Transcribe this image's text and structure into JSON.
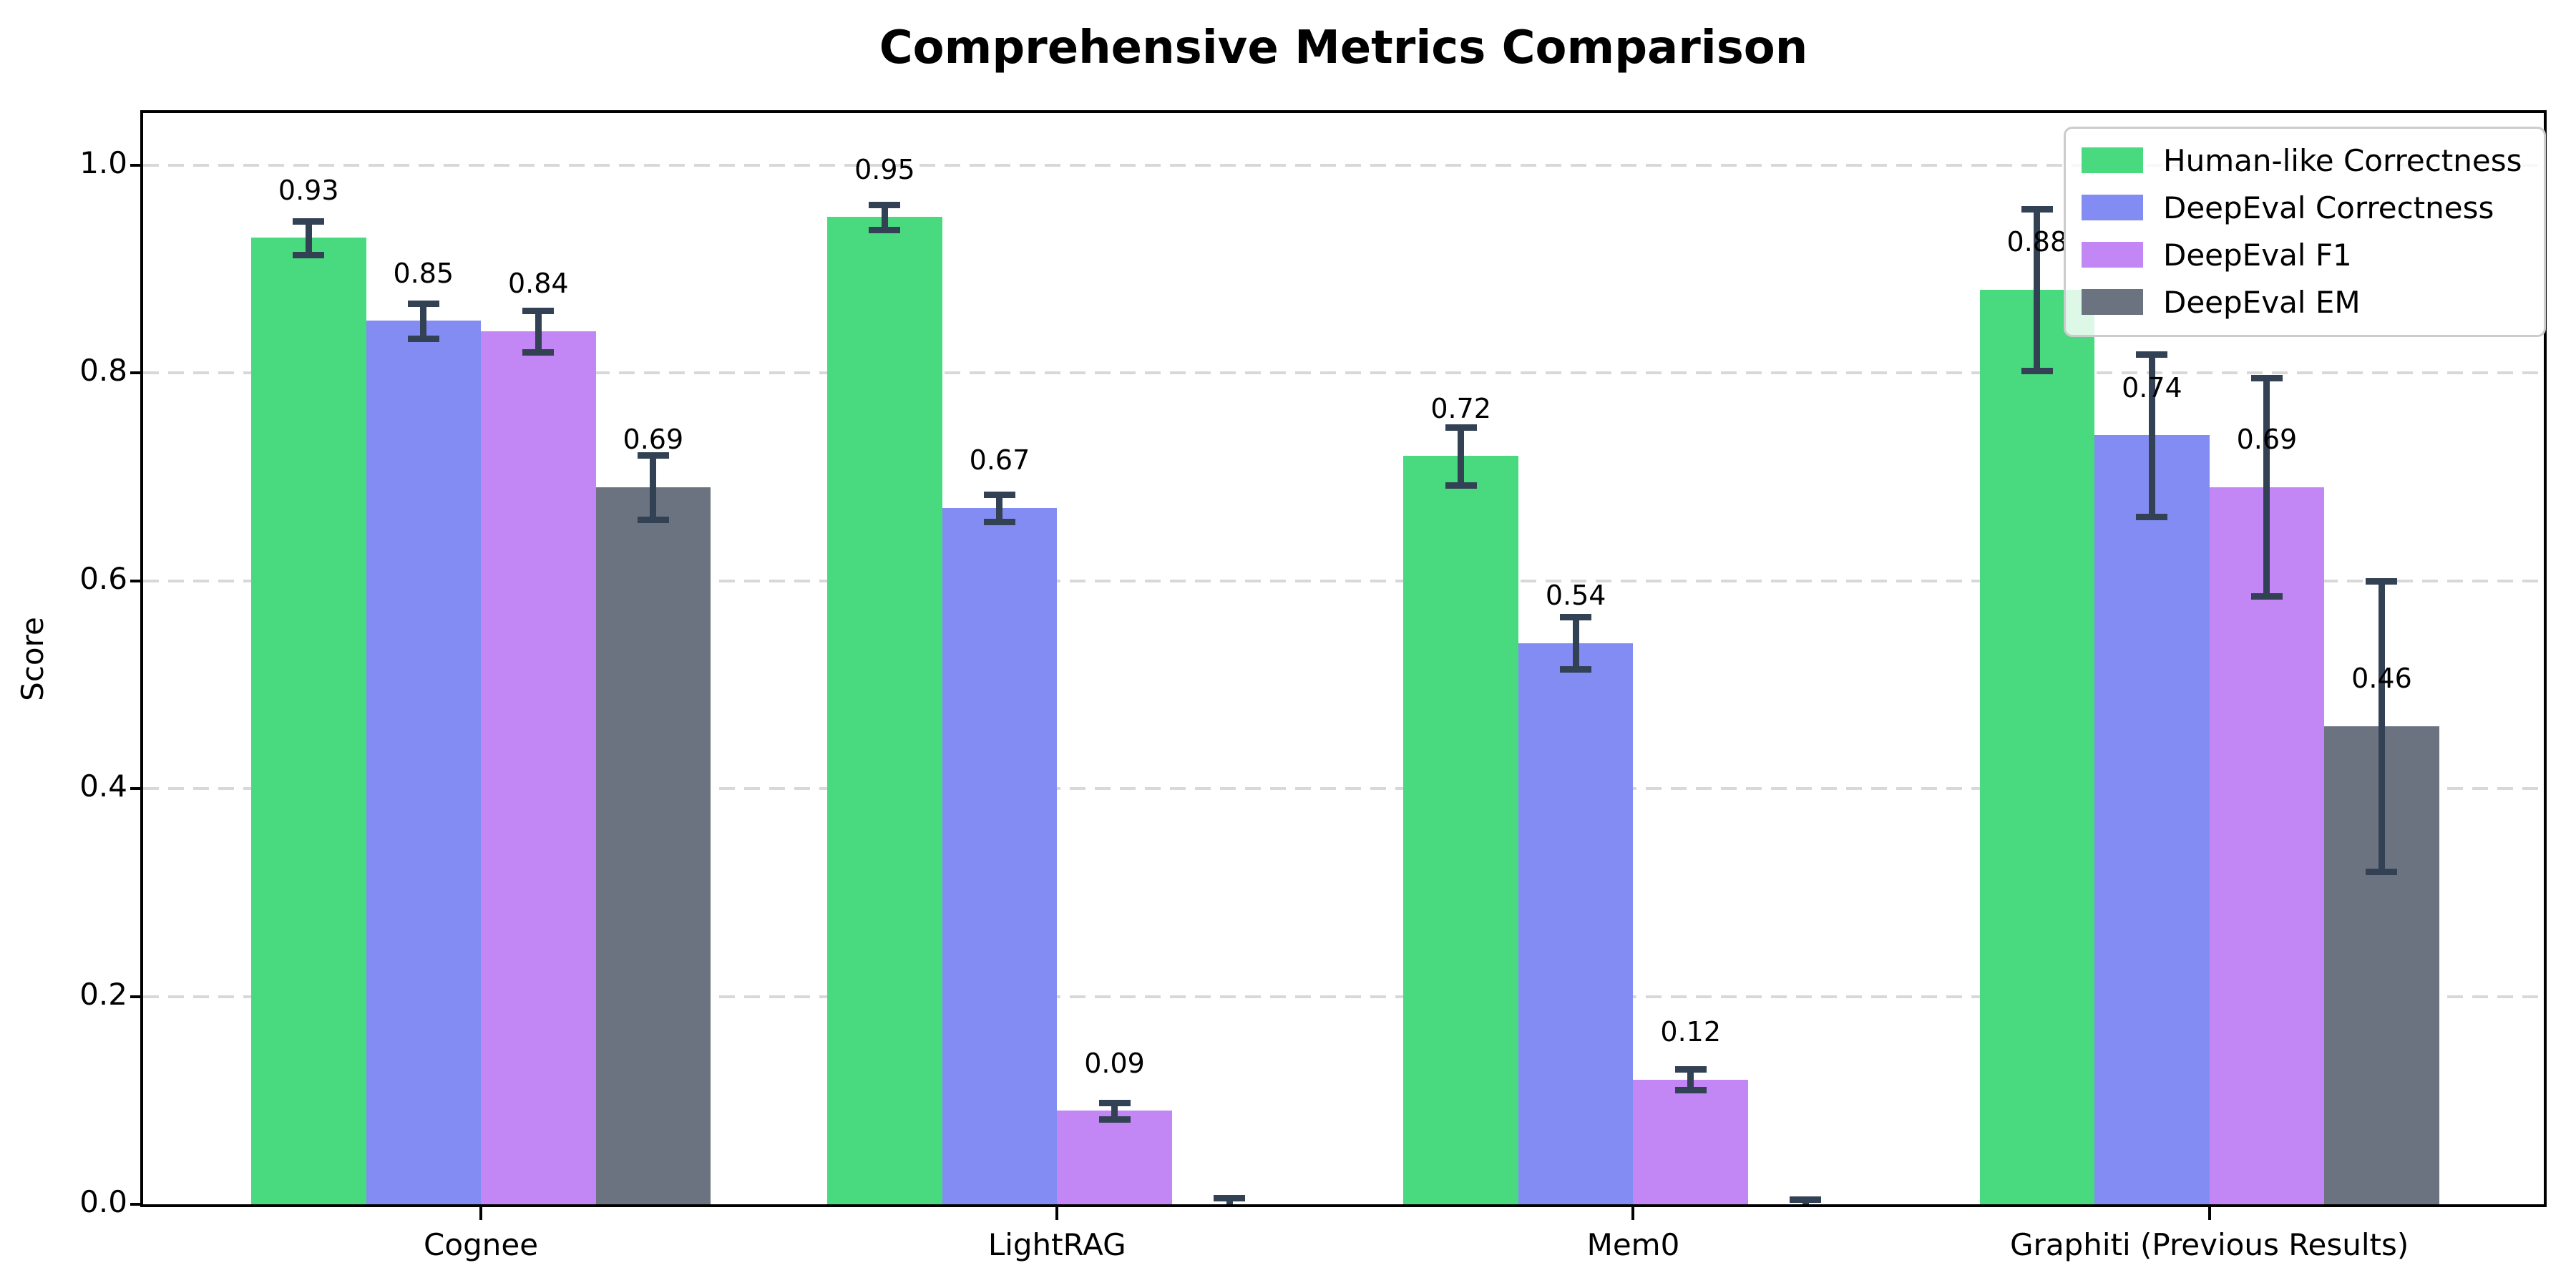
{
  "figure": {
    "background": "#ffffff"
  },
  "chart_data": {
    "type": "bar",
    "title": "Comprehensive Metrics Comparison",
    "ylabel": "Score",
    "xlabel": "",
    "categories": [
      "Cognee",
      "LightRAG",
      "Mem0",
      "Graphiti (Previous Results)"
    ],
    "series": [
      {
        "name": "Human-like Correctness",
        "color": "#49d97e",
        "values": [
          0.93,
          0.95,
          0.72,
          0.88
        ],
        "errors": [
          0.016,
          0.012,
          0.028,
          0.078
        ]
      },
      {
        "name": "DeepEval Correctness",
        "color": "#828cf2",
        "values": [
          0.85,
          0.67,
          0.54,
          0.74
        ],
        "errors": [
          0.017,
          0.013,
          0.025,
          0.078
        ]
      },
      {
        "name": "DeepEval F1",
        "color": "#c286f5",
        "values": [
          0.84,
          0.09,
          0.12,
          0.69
        ],
        "errors": [
          0.02,
          0.008,
          0.01,
          0.105
        ]
      },
      {
        "name": "DeepEval EM",
        "color": "#6b7280",
        "values": [
          0.69,
          0.0,
          0.0,
          0.46
        ],
        "errors": [
          0.031,
          0.006,
          0.005,
          0.14
        ]
      }
    ],
    "ylim": [
      0,
      1.05
    ],
    "yticks": [
      0,
      0.2,
      0.4,
      0.6,
      0.8,
      1.0
    ],
    "ytick_labels": [
      "0.0",
      "0.2",
      "0.4",
      "0.6",
      "0.8",
      "1.0"
    ],
    "grid": {
      "axis": "y",
      "style": "dashed",
      "color": "#d8d8d8"
    },
    "error_bar_color": "#334155",
    "bar_value_labels": [
      "0.93",
      "0.95",
      "0.72",
      "0.88",
      "0.85",
      "0.67",
      "0.54",
      "0.74",
      "0.84",
      "0.09",
      "0.12",
      "0.69",
      "0.69",
      "0.46"
    ],
    "legend": {
      "position": "upper right"
    }
  }
}
